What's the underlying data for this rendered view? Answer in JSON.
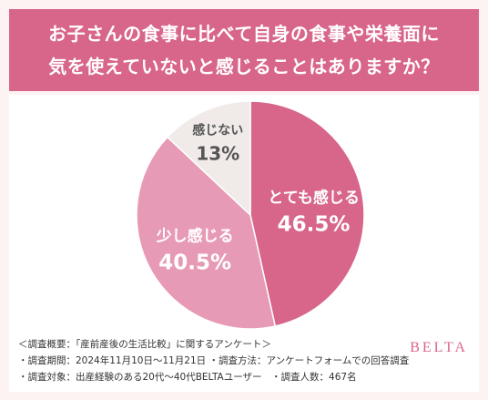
{
  "title": {
    "line1": "お子さんの食事に比べて自身の食事や栄養面に",
    "line2": "気を使えていないと感じることはありますか？"
  },
  "chart_data": {
    "type": "pie",
    "slices": [
      {
        "label": "とても感じる",
        "value": 46.5,
        "display": "46.5%",
        "color": "#d8658a",
        "text_color": "#ffffff"
      },
      {
        "label": "少し感じる",
        "value": 40.5,
        "display": "40.5%",
        "color": "#e79ab5",
        "text_color": "#ffffff"
      },
      {
        "label": "感じない",
        "value": 13,
        "display": "13%",
        "color": "#f0ebe9",
        "text_color": "#555555"
      }
    ]
  },
  "footer": {
    "line1": "＜調査概要：「産前産後の生活比較」に関するアンケート＞",
    "line2": "・調査期間：2024年11月10日～11月21日 ・調査方法：アンケートフォームでの回答調査",
    "line3": "・調査対象：出産経験のある20代〜40代BELTAユーザー　・調査人数：467名"
  },
  "brand": "BELTA"
}
